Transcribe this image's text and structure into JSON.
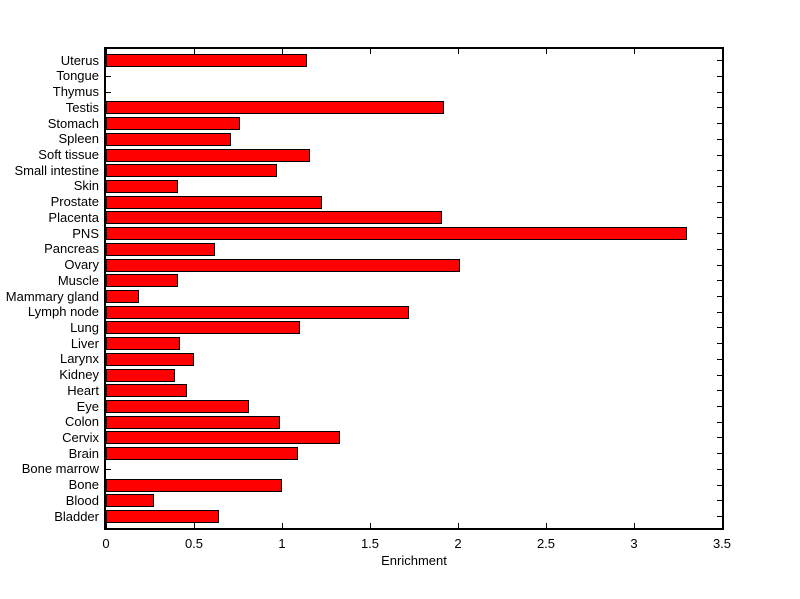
{
  "chart_data": {
    "type": "bar",
    "orientation": "horizontal",
    "xlabel": "Enrichment",
    "categories": [
      "Uterus",
      "Tongue",
      "Thymus",
      "Testis",
      "Stomach",
      "Spleen",
      "Soft tissue",
      "Small intestine",
      "Skin",
      "Prostate",
      "Placenta",
      "PNS",
      "Pancreas",
      "Ovary",
      "Muscle",
      "Mammary gland",
      "Lymph node",
      "Lung",
      "Liver",
      "Larynx",
      "Kidney",
      "Heart",
      "Eye",
      "Colon",
      "Cervix",
      "Brain",
      "Bone marrow",
      "Bone",
      "Blood",
      "Bladder"
    ],
    "values": [
      1.14,
      0,
      0,
      1.92,
      0.76,
      0.71,
      1.16,
      0.97,
      0.41,
      1.23,
      1.91,
      3.3,
      0.62,
      2.01,
      0.41,
      0.19,
      1.72,
      1.1,
      0.42,
      0.5,
      0.39,
      0.46,
      0.81,
      0.99,
      1.33,
      1.09,
      0,
      1.0,
      0.27,
      0.64
    ],
    "xlim": [
      0,
      3.5
    ],
    "xticks": [
      0,
      0.5,
      1,
      1.5,
      2,
      2.5,
      3,
      3.5
    ],
    "xtick_labels": [
      "0",
      "0.5",
      "1",
      "1.5",
      "2",
      "2.5",
      "3",
      "3.5"
    ],
    "bar_color": "#FF0000",
    "bar_edge_color": "#000000",
    "axis_color": "#000000",
    "background_color": "#FFFFFF",
    "grid": false
  }
}
